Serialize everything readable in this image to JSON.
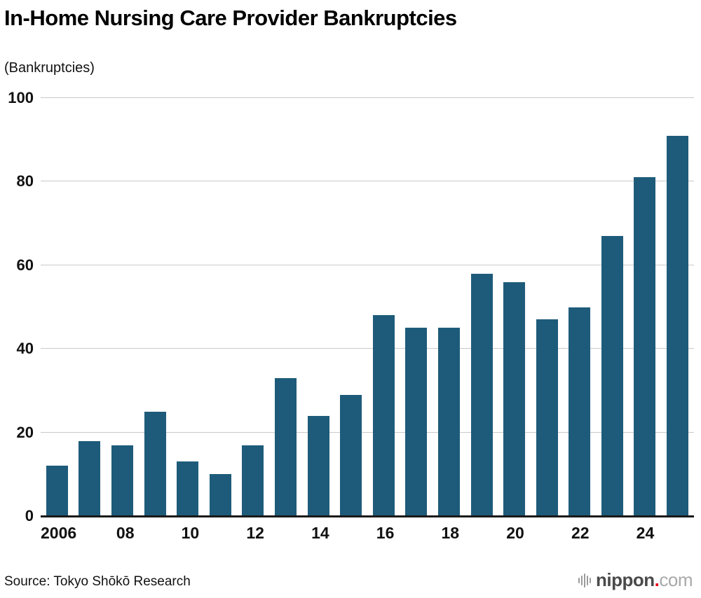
{
  "chart_data": {
    "type": "bar",
    "title": "In-Home Nursing Care Provider Bankruptcies",
    "unit_label": "(Bankruptcies)",
    "categories": [
      "2006",
      "2007",
      "2008",
      "2009",
      "2010",
      "2011",
      "2012",
      "2013",
      "2014",
      "2015",
      "2016",
      "2017",
      "2018",
      "2019",
      "2020",
      "2021",
      "2022",
      "2023",
      "2024",
      "2025"
    ],
    "values": [
      12,
      18,
      17,
      25,
      13,
      10,
      17,
      33,
      24,
      29,
      48,
      45,
      45,
      58,
      56,
      47,
      50,
      67,
      81,
      91
    ],
    "xtick_labels": [
      "2006",
      "",
      "08",
      "",
      "10",
      "",
      "12",
      "",
      "14",
      "",
      "16",
      "",
      "18",
      "",
      "20",
      "",
      "22",
      "",
      "24",
      ""
    ],
    "yticks": [
      0,
      20,
      40,
      60,
      80,
      100
    ],
    "ylim": [
      0,
      100
    ],
    "grid": true,
    "legend": "none",
    "bar_color": "#1e5b7a"
  },
  "footer": {
    "source": "Source: Tokyo Shōkō Research",
    "logo_main": "nippon",
    "logo_dot": ".",
    "logo_suffix": "com"
  }
}
